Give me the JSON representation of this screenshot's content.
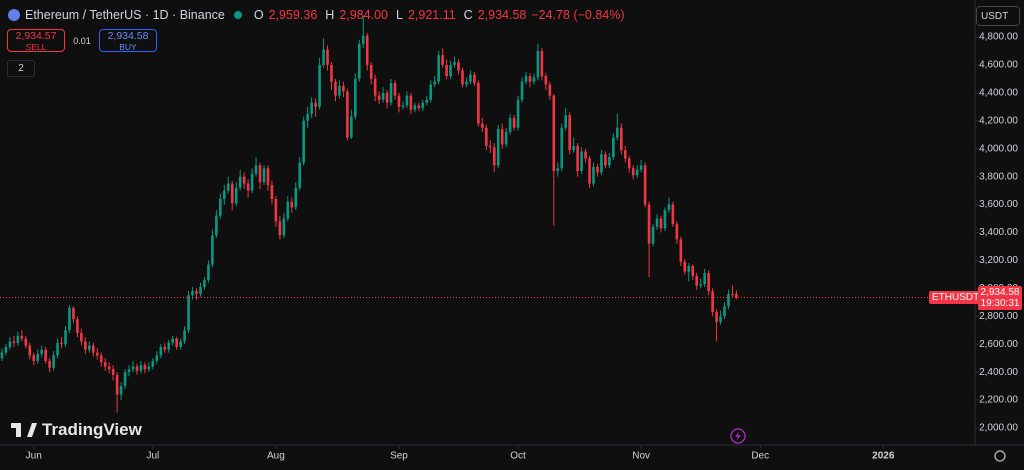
{
  "chart_data": {
    "type": "candlestick",
    "title": "Ethereum / TetherUS · 1D · Binance",
    "ohlc_legend": [
      {
        "label": "O",
        "value": "2,959.36"
      },
      {
        "label": "H",
        "value": "2,984.00"
      },
      {
        "label": "L",
        "value": "2,921.11"
      },
      {
        "label": "C",
        "value": "2,934.58"
      }
    ],
    "change": "−24.78 (−0.84%)",
    "sell": {
      "price": "2,934.57",
      "label": "SELL"
    },
    "spread": "0.01",
    "buy": {
      "price": "2,934.58",
      "label": "BUY"
    },
    "indicators": "2",
    "currency": "USDT",
    "price_tag": {
      "symbol": "ETHUSDT",
      "price": "2,934.58",
      "countdown": "19:30:31"
    },
    "watermark": "TradingView",
    "up_color": "#089981",
    "down_color": "#f23645",
    "grid": false,
    "xlim": [
      -0.5,
      245.1
    ],
    "xticks": [
      {
        "value": 8,
        "label": "Jun"
      },
      {
        "value": 38,
        "label": "Jul"
      },
      {
        "value": 69,
        "label": "Aug"
      },
      {
        "value": 100,
        "label": "Sep"
      },
      {
        "value": 130,
        "label": "Oct"
      },
      {
        "value": 161,
        "label": "Nov"
      },
      {
        "value": 191,
        "label": "Dec"
      },
      {
        "value": 222,
        "label": "2026"
      }
    ],
    "ylim": [
      1878,
      5065
    ],
    "yticks": [
      {
        "value": 2000,
        "label": "2,000.00"
      },
      {
        "value": 2200,
        "label": "2,200.00"
      },
      {
        "value": 2400,
        "label": "2,400.00"
      },
      {
        "value": 2600,
        "label": "2,600.00"
      },
      {
        "value": 2800,
        "label": "2,800.00"
      },
      {
        "value": 3000,
        "label": "3,000.00"
      },
      {
        "value": 3200,
        "label": "3,200.00"
      },
      {
        "value": 3400,
        "label": "3,400.00"
      },
      {
        "value": 3600,
        "label": "3,600.00"
      },
      {
        "value": 3800,
        "label": "3,800.00"
      },
      {
        "value": 4000,
        "label": "4,000.00"
      },
      {
        "value": 4200,
        "label": "4,200.00"
      },
      {
        "value": 4400,
        "label": "4,400.00"
      },
      {
        "value": 4600,
        "label": "4,600.00"
      },
      {
        "value": 4800,
        "label": "4,800.00"
      }
    ],
    "ohlc": [
      [
        2500,
        2570,
        2480,
        2540
      ],
      [
        2540,
        2600,
        2520,
        2580
      ],
      [
        2580,
        2650,
        2560,
        2620
      ],
      [
        2620,
        2660,
        2580,
        2610
      ],
      [
        2610,
        2690,
        2590,
        2660
      ],
      [
        2660,
        2700,
        2620,
        2640
      ],
      [
        2640,
        2660,
        2570,
        2590
      ],
      [
        2590,
        2610,
        2490,
        2520
      ],
      [
        2520,
        2540,
        2450,
        2480
      ],
      [
        2480,
        2560,
        2460,
        2530
      ],
      [
        2530,
        2590,
        2510,
        2560
      ],
      [
        2560,
        2580,
        2460,
        2480
      ],
      [
        2480,
        2500,
        2400,
        2430
      ],
      [
        2430,
        2550,
        2410,
        2520
      ],
      [
        2520,
        2640,
        2500,
        2610
      ],
      [
        2610,
        2650,
        2570,
        2600
      ],
      [
        2600,
        2730,
        2580,
        2700
      ],
      [
        2700,
        2880,
        2680,
        2860
      ],
      [
        2860,
        2870,
        2750,
        2780
      ],
      [
        2780,
        2800,
        2650,
        2680
      ],
      [
        2680,
        2710,
        2590,
        2620
      ],
      [
        2620,
        2650,
        2530,
        2560
      ],
      [
        2560,
        2620,
        2540,
        2590
      ],
      [
        2590,
        2610,
        2510,
        2540
      ],
      [
        2540,
        2570,
        2490,
        2520
      ],
      [
        2520,
        2540,
        2440,
        2470
      ],
      [
        2470,
        2500,
        2410,
        2440
      ],
      [
        2440,
        2470,
        2390,
        2420
      ],
      [
        2420,
        2450,
        2340,
        2380
      ],
      [
        2380,
        2400,
        2110,
        2240
      ],
      [
        2240,
        2330,
        2200,
        2300
      ],
      [
        2300,
        2420,
        2280,
        2400
      ],
      [
        2400,
        2450,
        2370,
        2420
      ],
      [
        2420,
        2480,
        2400,
        2440
      ],
      [
        2440,
        2460,
        2380,
        2410
      ],
      [
        2410,
        2480,
        2390,
        2450
      ],
      [
        2450,
        2470,
        2390,
        2420
      ],
      [
        2420,
        2470,
        2400,
        2440
      ],
      [
        2440,
        2500,
        2420,
        2480
      ],
      [
        2480,
        2550,
        2460,
        2520
      ],
      [
        2520,
        2600,
        2500,
        2580
      ],
      [
        2580,
        2610,
        2540,
        2560
      ],
      [
        2560,
        2630,
        2540,
        2610
      ],
      [
        2610,
        2660,
        2590,
        2640
      ],
      [
        2640,
        2650,
        2560,
        2580
      ],
      [
        2580,
        2640,
        2560,
        2620
      ],
      [
        2620,
        2730,
        2600,
        2700
      ],
      [
        2700,
        2980,
        2680,
        2950
      ],
      [
        2950,
        3010,
        2920,
        2980
      ],
      [
        2980,
        3000,
        2920,
        2960
      ],
      [
        2960,
        3040,
        2940,
        3010
      ],
      [
        3010,
        3080,
        2990,
        3060
      ],
      [
        3060,
        3200,
        3040,
        3170
      ],
      [
        3170,
        3420,
        3150,
        3380
      ],
      [
        3380,
        3560,
        3360,
        3520
      ],
      [
        3520,
        3680,
        3500,
        3640
      ],
      [
        3640,
        3740,
        3600,
        3700
      ],
      [
        3700,
        3800,
        3680,
        3750
      ],
      [
        3750,
        3770,
        3560,
        3610
      ],
      [
        3610,
        3760,
        3590,
        3720
      ],
      [
        3720,
        3850,
        3700,
        3800
      ],
      [
        3800,
        3830,
        3710,
        3750
      ],
      [
        3750,
        3780,
        3650,
        3700
      ],
      [
        3700,
        3860,
        3680,
        3820
      ],
      [
        3820,
        3940,
        3800,
        3880
      ],
      [
        3880,
        3900,
        3710,
        3760
      ],
      [
        3760,
        3880,
        3740,
        3860
      ],
      [
        3860,
        3880,
        3700,
        3740
      ],
      [
        3740,
        3770,
        3600,
        3640
      ],
      [
        3640,
        3660,
        3440,
        3480
      ],
      [
        3480,
        3520,
        3350,
        3380
      ],
      [
        3380,
        3540,
        3360,
        3500
      ],
      [
        3500,
        3660,
        3480,
        3620
      ],
      [
        3620,
        3650,
        3540,
        3580
      ],
      [
        3580,
        3760,
        3560,
        3720
      ],
      [
        3720,
        3940,
        3700,
        3900
      ],
      [
        3900,
        4230,
        3880,
        4200
      ],
      [
        4200,
        4300,
        4150,
        4250
      ],
      [
        4250,
        4370,
        4220,
        4330
      ],
      [
        4330,
        4360,
        4230,
        4300
      ],
      [
        4300,
        4650,
        4280,
        4600
      ],
      [
        4600,
        4790,
        4580,
        4710
      ],
      [
        4710,
        4740,
        4560,
        4600
      ],
      [
        4600,
        4620,
        4420,
        4480
      ],
      [
        4480,
        4500,
        4340,
        4380
      ],
      [
        4380,
        4490,
        4360,
        4450
      ],
      [
        4450,
        4480,
        4370,
        4410
      ],
      [
        4410,
        4430,
        4060,
        4080
      ],
      [
        4080,
        4280,
        4070,
        4230
      ],
      [
        4230,
        4540,
        4210,
        4500
      ],
      [
        4500,
        4780,
        4480,
        4750
      ],
      [
        4750,
        4950,
        4720,
        4810
      ],
      [
        4810,
        4830,
        4560,
        4600
      ],
      [
        4600,
        4620,
        4460,
        4500
      ],
      [
        4500,
        4530,
        4340,
        4380
      ],
      [
        4380,
        4410,
        4320,
        4350
      ],
      [
        4350,
        4440,
        4330,
        4400
      ],
      [
        4400,
        4420,
        4290,
        4330
      ],
      [
        4330,
        4500,
        4310,
        4470
      ],
      [
        4470,
        4490,
        4350,
        4380
      ],
      [
        4380,
        4400,
        4260,
        4300
      ],
      [
        4300,
        4340,
        4280,
        4310
      ],
      [
        4310,
        4410,
        4290,
        4380
      ],
      [
        4380,
        4400,
        4250,
        4280
      ],
      [
        4280,
        4330,
        4260,
        4310
      ],
      [
        4310,
        4330,
        4270,
        4290
      ],
      [
        4290,
        4350,
        4270,
        4330
      ],
      [
        4330,
        4380,
        4310,
        4350
      ],
      [
        4350,
        4490,
        4330,
        4460
      ],
      [
        4460,
        4520,
        4440,
        4480
      ],
      [
        4480,
        4700,
        4460,
        4670
      ],
      [
        4670,
        4720,
        4580,
        4600
      ],
      [
        4600,
        4640,
        4500,
        4520
      ],
      [
        4520,
        4630,
        4500,
        4600
      ],
      [
        4600,
        4660,
        4580,
        4620
      ],
      [
        4620,
        4640,
        4530,
        4560
      ],
      [
        4560,
        4580,
        4440,
        4460
      ],
      [
        4460,
        4510,
        4440,
        4480
      ],
      [
        4480,
        4560,
        4460,
        4530
      ],
      [
        4530,
        4550,
        4450,
        4470
      ],
      [
        4470,
        4490,
        4160,
        4180
      ],
      [
        4180,
        4220,
        4120,
        4150
      ],
      [
        4150,
        4170,
        3990,
        4020
      ],
      [
        4020,
        4060,
        3970,
        4010
      ],
      [
        4010,
        4040,
        3830,
        3880
      ],
      [
        3880,
        4170,
        3860,
        4140
      ],
      [
        4140,
        4180,
        4000,
        4030
      ],
      [
        4030,
        4150,
        4010,
        4120
      ],
      [
        4120,
        4250,
        4100,
        4220
      ],
      [
        4220,
        4240,
        4130,
        4150
      ],
      [
        4150,
        4380,
        4130,
        4350
      ],
      [
        4350,
        4510,
        4330,
        4480
      ],
      [
        4480,
        4550,
        4460,
        4520
      ],
      [
        4520,
        4540,
        4440,
        4480
      ],
      [
        4480,
        4540,
        4460,
        4510
      ],
      [
        4510,
        4750,
        4490,
        4700
      ],
      [
        4700,
        4720,
        4490,
        4520
      ],
      [
        4520,
        4540,
        4420,
        4460
      ],
      [
        4460,
        4480,
        4350,
        4380
      ],
      [
        4380,
        4390,
        3450,
        3840
      ],
      [
        3840,
        3900,
        3800,
        3860
      ],
      [
        3860,
        4180,
        3840,
        4150
      ],
      [
        4150,
        4290,
        4130,
        4240
      ],
      [
        4240,
        4260,
        3960,
        3990
      ],
      [
        3990,
        4080,
        3970,
        4020
      ],
      [
        4020,
        4040,
        3800,
        3840
      ],
      [
        3840,
        4010,
        3820,
        3980
      ],
      [
        3980,
        4000,
        3900,
        3930
      ],
      [
        3930,
        3950,
        3720,
        3750
      ],
      [
        3750,
        3900,
        3730,
        3870
      ],
      [
        3870,
        3890,
        3800,
        3830
      ],
      [
        3830,
        3990,
        3810,
        3960
      ],
      [
        3960,
        3980,
        3860,
        3880
      ],
      [
        3880,
        3970,
        3860,
        3940
      ],
      [
        3940,
        4110,
        3920,
        4080
      ],
      [
        4080,
        4250,
        4060,
        4150
      ],
      [
        4150,
        4180,
        3960,
        3990
      ],
      [
        3990,
        4020,
        3900,
        3930
      ],
      [
        3930,
        3950,
        3830,
        3860
      ],
      [
        3860,
        3880,
        3780,
        3810
      ],
      [
        3810,
        3880,
        3790,
        3850
      ],
      [
        3850,
        3920,
        3830,
        3880
      ],
      [
        3880,
        3900,
        3580,
        3600
      ],
      [
        3600,
        3620,
        3080,
        3320
      ],
      [
        3320,
        3460,
        3300,
        3440
      ],
      [
        3440,
        3530,
        3420,
        3500
      ],
      [
        3500,
        3520,
        3400,
        3430
      ],
      [
        3430,
        3580,
        3410,
        3560
      ],
      [
        3560,
        3650,
        3540,
        3600
      ],
      [
        3600,
        3620,
        3440,
        3460
      ],
      [
        3460,
        3480,
        3320,
        3350
      ],
      [
        3350,
        3370,
        3160,
        3190
      ],
      [
        3190,
        3210,
        3100,
        3120
      ],
      [
        3120,
        3180,
        3050,
        3160
      ],
      [
        3160,
        3170,
        3060,
        3090
      ],
      [
        3090,
        3110,
        2990,
        3020
      ],
      [
        3020,
        3070,
        3000,
        3030
      ],
      [
        3030,
        3140,
        3010,
        3110
      ],
      [
        3110,
        3130,
        2950,
        2980
      ],
      [
        2980,
        3000,
        2800,
        2830
      ],
      [
        2830,
        2850,
        2620,
        2760
      ],
      [
        2760,
        2840,
        2740,
        2800
      ],
      [
        2800,
        2900,
        2780,
        2870
      ],
      [
        2870,
        2990,
        2850,
        2960
      ],
      [
        2960,
        3020,
        2940,
        2959.36
      ],
      [
        2959.36,
        2984,
        2921.11,
        2934.58
      ]
    ]
  }
}
